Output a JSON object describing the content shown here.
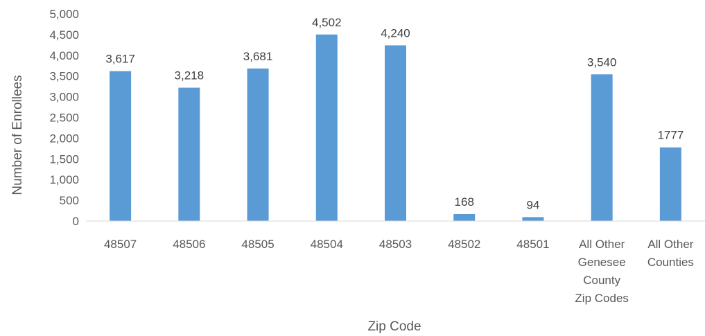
{
  "chart_data": {
    "type": "bar",
    "title": "",
    "xlabel": "Zip Code",
    "ylabel": "Number of Enrollees",
    "ylim": [
      0,
      5000
    ],
    "yticks": [
      "0",
      "500",
      "1,000",
      "1,500",
      "2,000",
      "2,500",
      "3,000",
      "3,500",
      "4,000",
      "4,500",
      "5,000"
    ],
    "grid": false,
    "legend": "none",
    "bar_color": "#5B9BD5",
    "categories": [
      [
        "48507"
      ],
      [
        "48506"
      ],
      [
        "48505"
      ],
      [
        "48504"
      ],
      [
        "48503"
      ],
      [
        "48502"
      ],
      [
        "48501"
      ],
      [
        "All Other",
        "Genesee",
        "County",
        "Zip Codes"
      ],
      [
        "All Other",
        "Counties"
      ]
    ],
    "values": [
      3617,
      3218,
      3681,
      4502,
      4240,
      168,
      94,
      3540,
      1777
    ],
    "data_labels": [
      "3,617",
      "3,218",
      "3,681",
      "4,502",
      "4,240",
      "168",
      "94",
      "3,540",
      "1777"
    ]
  }
}
